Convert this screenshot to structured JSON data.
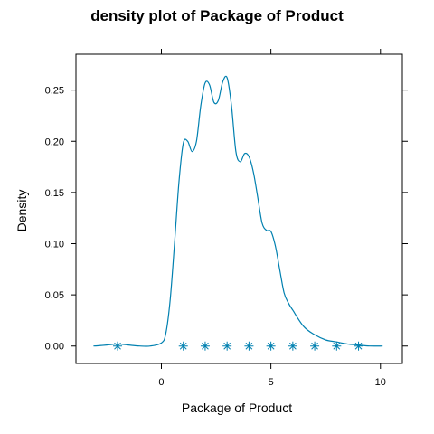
{
  "chart_data": {
    "type": "line",
    "title": "density plot of Package of Product",
    "xlabel": "Package of Product",
    "ylabel": "Density",
    "xlim": [
      -3.9,
      11.0
    ],
    "ylim": [
      -0.017,
      0.285
    ],
    "x_ticks": [
      0,
      5,
      10
    ],
    "x_tick_labels": [
      "0",
      "5",
      "10"
    ],
    "y_ticks": [
      0.0,
      0.05,
      0.1,
      0.15,
      0.2,
      0.25
    ],
    "y_tick_labels": [
      "0.00",
      "0.05",
      "0.10",
      "0.15",
      "0.20",
      "0.25"
    ],
    "grid": false,
    "legend": "none",
    "line_color": "#0080b0",
    "series": [
      {
        "x": [
          -3.1,
          -2.5,
          -2.0,
          -1.5,
          -1.0,
          -0.5,
          0.0,
          0.2,
          0.4,
          0.6,
          0.8,
          1.0,
          1.2,
          1.4,
          1.6,
          1.8,
          2.0,
          2.2,
          2.4,
          2.6,
          2.8,
          3.0,
          3.2,
          3.4,
          3.6,
          3.8,
          4.0,
          4.2,
          4.4,
          4.6,
          4.8,
          5.0,
          5.2,
          5.4,
          5.6,
          5.8,
          6.0,
          6.5,
          7.0,
          7.5,
          8.0,
          8.5,
          9.0,
          9.5,
          10.1
        ],
        "y": [
          0.0,
          0.001,
          0.002,
          0.001,
          0.0,
          0.0,
          0.003,
          0.012,
          0.045,
          0.1,
          0.16,
          0.198,
          0.2,
          0.19,
          0.2,
          0.235,
          0.257,
          0.255,
          0.238,
          0.24,
          0.258,
          0.262,
          0.235,
          0.19,
          0.18,
          0.188,
          0.185,
          0.17,
          0.145,
          0.12,
          0.113,
          0.112,
          0.098,
          0.075,
          0.052,
          0.042,
          0.035,
          0.019,
          0.011,
          0.006,
          0.004,
          0.002,
          0.001,
          0.0,
          0.0
        ]
      }
    ],
    "rug_points": [
      -2,
      1,
      2,
      3,
      4,
      5,
      6,
      7,
      8,
      9
    ]
  }
}
